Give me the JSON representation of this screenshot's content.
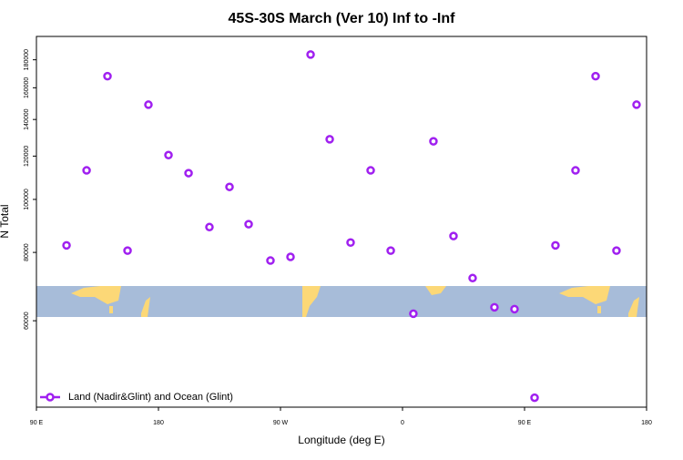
{
  "chart_data": {
    "type": "scatter",
    "title": "45S-30S March (Ver 10)   Inf to -Inf",
    "x_label": "Longitude (deg E)",
    "y_label": "N Total",
    "log_y": true,
    "legend_position": "bottom-left",
    "xlim": [
      90,
      540
    ],
    "xticks": [
      {
        "value": 90,
        "label": "90 E"
      },
      {
        "value": 180,
        "label": "180"
      },
      {
        "value": 270,
        "label": "90 W"
      },
      {
        "value": 360,
        "label": "0"
      },
      {
        "value": 450,
        "label": "90 E"
      },
      {
        "value": 540,
        "label": "180"
      }
    ],
    "ylim": [
      41700,
      198600
    ],
    "yticks": [
      60000,
      80000,
      100000,
      120000,
      140000,
      160000,
      180000
    ],
    "series": [
      {
        "name": "Land (Nadir&Glint) and Ocean (Glint)",
        "color": "#a020f0",
        "x": [
          112.2,
          127,
          142.4,
          157.2,
          172.6,
          187.4,
          202.2,
          217.6,
          232.4,
          246.5,
          262.6,
          277.4,
          292.2,
          306.3,
          321.7,
          336.5,
          351.3,
          368,
          382.8,
          397.6,
          411.7,
          427.8,
          442.6,
          457.4,
          472.8,
          487.6,
          502.4,
          517.8,
          532.6
        ],
        "values": [
          82400,
          113000,
          168000,
          80600,
          149000,
          120500,
          111700,
          89000,
          105400,
          90100,
          77300,
          78500,
          184000,
          128800,
          83400,
          113000,
          80600,
          61800,
          127700,
          85700,
          71800,
          63500,
          63000,
          43400,
          82400,
          113000,
          168000,
          80600,
          149000
        ]
      }
    ]
  }
}
